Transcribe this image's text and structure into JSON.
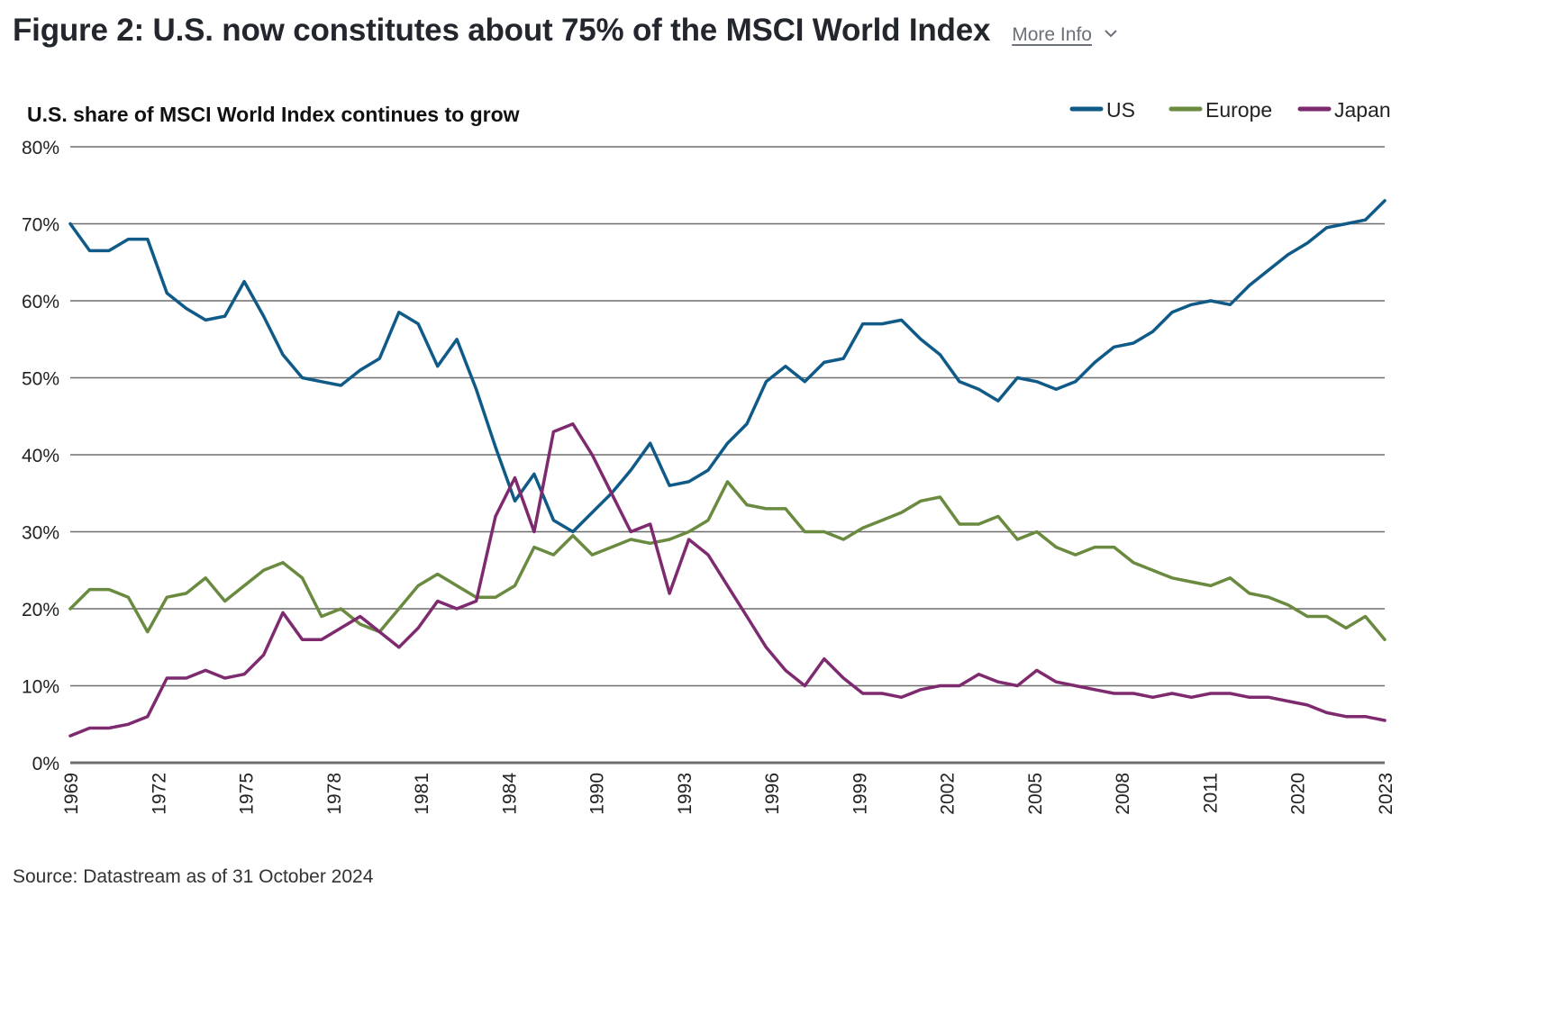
{
  "header": {
    "title": "Figure 2: U.S. now constitutes about 75% of the MSCI World Index",
    "more_info_label": "More Info",
    "more_info_icon": "chevron-down-icon"
  },
  "footer": {
    "source": "Source: Datastream as of 31 October 2024"
  },
  "colors": {
    "US": "#0f5a87",
    "Europe": "#6a8a3f",
    "Japan": "#7e2a6e",
    "grid": "#6e6e6e"
  },
  "chart_data": {
    "type": "line",
    "title": "U.S. share of MSCI World Index continues to grow",
    "xlabel": "",
    "ylabel": "",
    "ylim": [
      0,
      80
    ],
    "yticks": [
      0,
      10,
      20,
      30,
      40,
      50,
      60,
      70,
      80
    ],
    "ytick_labels": [
      "0%",
      "10%",
      "20%",
      "30%",
      "40%",
      "50%",
      "60%",
      "70%",
      "80%"
    ],
    "categories": [
      "1969",
      "1972",
      "1975",
      "1978",
      "1981",
      "1984",
      "1990",
      "1993",
      "1996",
      "1999",
      "2002",
      "2005",
      "2008",
      "2011",
      "2020",
      "2023"
    ],
    "grid": true,
    "legend_position": "top-right",
    "x_note": "Series values are sampled evenly across the category axis (position 0 = first label 1969, position 15 = last label 2023); 4 samples per label interval plus end point.",
    "series": [
      {
        "name": "US",
        "values": [
          70,
          66.5,
          66.5,
          68,
          68,
          61,
          59,
          57.5,
          58,
          62.5,
          58,
          53,
          50,
          49.5,
          49,
          51,
          52.5,
          58.5,
          57,
          51.5,
          55,
          48.5,
          41,
          34,
          37.5,
          31.5,
          30,
          32.5,
          35,
          38,
          41.5,
          36,
          36.5,
          38,
          41.5,
          44,
          49.5,
          51.5,
          49.5,
          52,
          52.5,
          57,
          57,
          57.5,
          55,
          53,
          49.5,
          48.5,
          47,
          50,
          49.5,
          48.5,
          49.5,
          52,
          54,
          54.5,
          56,
          58.5,
          59.5,
          60,
          59.5,
          62,
          64,
          66,
          67.5,
          69.5,
          70,
          70.5,
          73
        ]
      },
      {
        "name": "Europe",
        "values": [
          20,
          22.5,
          22.5,
          21.5,
          17,
          21.5,
          22,
          24,
          21,
          23,
          25,
          26,
          24,
          19,
          20,
          18,
          17,
          20,
          23,
          24.5,
          23,
          21.5,
          21.5,
          23,
          28,
          27,
          29.5,
          27,
          28,
          29,
          28.5,
          29,
          30,
          31.5,
          36.5,
          33.5,
          33,
          33,
          30,
          30,
          29,
          30.5,
          31.5,
          32.5,
          34,
          34.5,
          31,
          31,
          32,
          29,
          30,
          28,
          27,
          28,
          28,
          26,
          25,
          24,
          23.5,
          23,
          24,
          22,
          21.5,
          20.5,
          19,
          19,
          17.5,
          19,
          16
        ]
      },
      {
        "name": "Japan",
        "values": [
          3.5,
          4.5,
          4.5,
          5,
          6,
          11,
          11,
          12,
          11,
          11.5,
          14,
          19.5,
          16,
          16,
          17.5,
          19,
          17,
          15,
          17.5,
          21,
          20,
          21,
          32,
          37,
          30,
          43,
          44,
          40,
          35,
          30,
          31,
          22,
          29,
          27,
          23,
          19,
          15,
          12,
          10,
          13.5,
          11,
          9,
          9,
          8.5,
          9.5,
          10,
          10,
          11.5,
          10.5,
          10,
          12,
          10.5,
          10,
          9.5,
          9,
          9,
          8.5,
          9,
          8.5,
          9,
          9,
          8.5,
          8.5,
          8,
          7.5,
          6.5,
          6,
          6,
          5.5
        ]
      }
    ]
  }
}
